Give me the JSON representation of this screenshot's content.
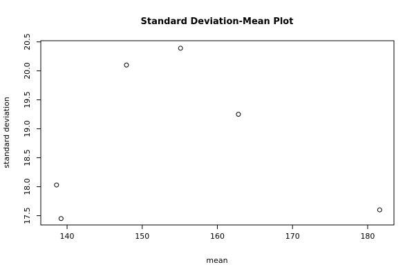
{
  "chart_data": {
    "type": "scatter",
    "title": "Standard Deviation-Mean Plot",
    "xlabel": "mean",
    "ylabel": "standard deviation",
    "xlim": [
      136.5,
      183.5
    ],
    "ylim": [
      17.34,
      20.52
    ],
    "xticks": [
      140,
      150,
      160,
      170,
      180
    ],
    "yticks": [
      17.5,
      18.0,
      18.5,
      19.0,
      19.5,
      20.0,
      20.5
    ],
    "ytick_labels": [
      "17.5",
      "18.0",
      "18.5",
      "19.0",
      "19.5",
      "20.0",
      "20.5"
    ],
    "points": [
      {
        "x": 138.6,
        "y": 18.03
      },
      {
        "x": 139.2,
        "y": 17.45
      },
      {
        "x": 147.9,
        "y": 20.1
      },
      {
        "x": 155.1,
        "y": 20.39
      },
      {
        "x": 162.8,
        "y": 19.25
      },
      {
        "x": 181.6,
        "y": 17.6
      }
    ],
    "grid": false,
    "legend": "none"
  }
}
